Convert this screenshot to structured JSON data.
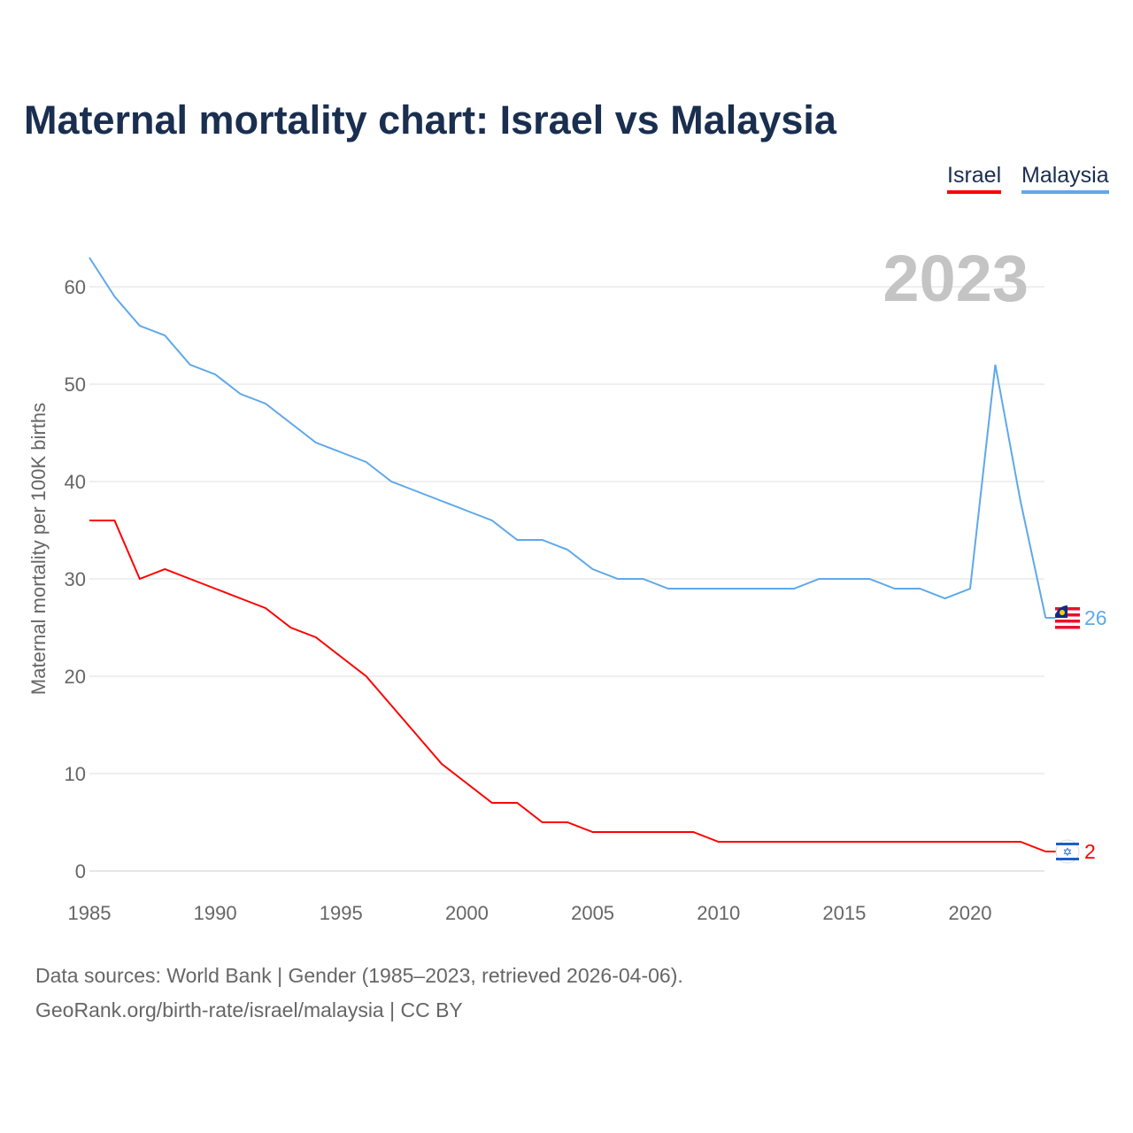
{
  "chart_data": {
    "type": "line",
    "title": "Maternal mortality chart: Israel vs Malaysia",
    "year_label": "2023",
    "ylabel": "Maternal mortality per 100K births",
    "xlabel": "",
    "xlim": [
      1985,
      2023
    ],
    "ylim": [
      0,
      65
    ],
    "xticks": [
      "1985",
      "1990",
      "1995",
      "2000",
      "2005",
      "2010",
      "2015",
      "2020"
    ],
    "yticks": [
      "0",
      "10",
      "20",
      "30",
      "40",
      "50",
      "60"
    ],
    "grid": true,
    "legend_placement": "top-right",
    "x": [
      1985,
      1986,
      1987,
      1988,
      1989,
      1990,
      1991,
      1992,
      1993,
      1994,
      1995,
      1996,
      1997,
      1998,
      1999,
      2000,
      2001,
      2002,
      2003,
      2004,
      2005,
      2006,
      2007,
      2008,
      2009,
      2010,
      2011,
      2012,
      2013,
      2014,
      2015,
      2016,
      2017,
      2018,
      2019,
      2020,
      2021,
      2022,
      2023
    ],
    "series": [
      {
        "name": "Israel",
        "color": "#ff0000",
        "end_label": "2",
        "values": [
          36,
          36,
          30,
          31,
          30,
          29,
          28,
          27,
          25,
          24,
          22,
          20,
          17,
          14,
          11,
          9,
          7,
          7,
          5,
          5,
          4,
          4,
          4,
          4,
          4,
          3,
          3,
          3,
          3,
          3,
          3,
          3,
          3,
          3,
          3,
          3,
          3,
          3,
          2
        ]
      },
      {
        "name": "Malaysia",
        "color": "#5fa8ea",
        "end_label": "26",
        "values": [
          63,
          59,
          56,
          55,
          52,
          51,
          49,
          48,
          46,
          44,
          43,
          42,
          40,
          39,
          38,
          37,
          36,
          34,
          34,
          33,
          31,
          30,
          30,
          29,
          29,
          29,
          29,
          29,
          29,
          30,
          30,
          30,
          29,
          29,
          28,
          29,
          52,
          38,
          26
        ]
      }
    ]
  },
  "footer": {
    "line1": "Data sources: World Bank | Gender (1985–2023, retrieved 2026-04-06).",
    "line2": "GeoRank.org/birth-rate/israel/malaysia | CC BY"
  }
}
